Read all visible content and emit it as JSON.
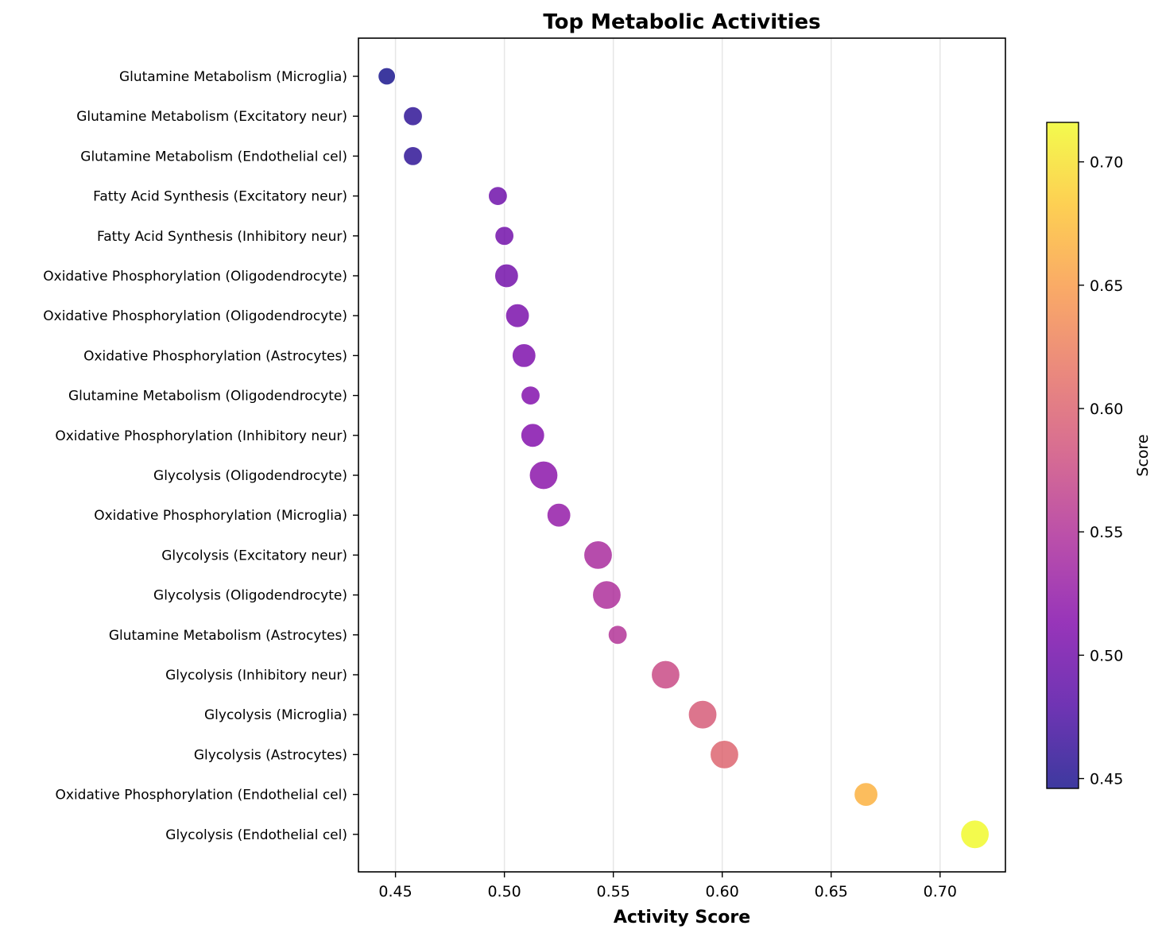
{
  "chart_data": {
    "type": "scatter",
    "title": "Top Metabolic Activities",
    "xlabel": "Activity Score",
    "ylabel": "",
    "xlim": [
      0.433,
      0.73
    ],
    "xticks": [
      0.45,
      0.5,
      0.55,
      0.6,
      0.65,
      0.7
    ],
    "xtick_labels": [
      "0.45",
      "0.50",
      "0.55",
      "0.60",
      "0.65",
      "0.70"
    ],
    "grid": "vertical",
    "colormap": "plasma",
    "colorbar": {
      "label": "Score",
      "range": [
        0.446,
        0.716
      ],
      "ticks": [
        0.45,
        0.5,
        0.55,
        0.6,
        0.65,
        0.7
      ],
      "tick_labels": [
        "0.45",
        "0.50",
        "0.55",
        "0.60",
        "0.65",
        "0.70"
      ]
    },
    "points": [
      {
        "label": "Glutamine Metabolism (Microglia)",
        "x": 0.446
      },
      {
        "label": "Glutamine Metabolism (Excitatory neur)",
        "x": 0.458
      },
      {
        "label": "Glutamine Metabolism (Endothelial cel)",
        "x": 0.458
      },
      {
        "label": "Fatty Acid Synthesis (Excitatory neur)",
        "x": 0.497
      },
      {
        "label": "Fatty Acid Synthesis (Inhibitory neur)",
        "x": 0.5
      },
      {
        "label": "Oxidative Phosphorylation (Oligodendrocyte)",
        "x": 0.501
      },
      {
        "label": "Oxidative Phosphorylation (Oligodendrocyte)",
        "x": 0.506
      },
      {
        "label": "Oxidative Phosphorylation (Astrocytes)",
        "x": 0.509
      },
      {
        "label": "Glutamine Metabolism (Oligodendrocyte)",
        "x": 0.512
      },
      {
        "label": "Oxidative Phosphorylation (Inhibitory neur)",
        "x": 0.513
      },
      {
        "label": "Glycolysis (Oligodendrocyte)",
        "x": 0.518
      },
      {
        "label": "Oxidative Phosphorylation (Microglia)",
        "x": 0.525
      },
      {
        "label": "Glycolysis (Excitatory neur)",
        "x": 0.543
      },
      {
        "label": "Glycolysis (Oligodendrocyte)",
        "x": 0.547
      },
      {
        "label": "Glutamine Metabolism (Astrocytes)",
        "x": 0.552
      },
      {
        "label": "Glycolysis (Inhibitory neur)",
        "x": 0.574
      },
      {
        "label": "Glycolysis (Microglia)",
        "x": 0.591
      },
      {
        "label": "Glycolysis (Astrocytes)",
        "x": 0.601
      },
      {
        "label": "Oxidative Phosphorylation (Endothelial cel)",
        "x": 0.666
      },
      {
        "label": "Glycolysis (Endothelial cel)",
        "x": 0.716
      }
    ]
  }
}
